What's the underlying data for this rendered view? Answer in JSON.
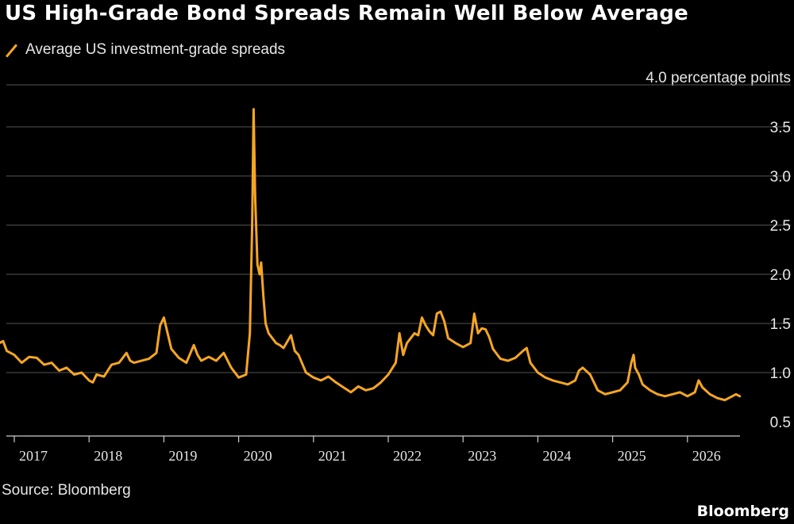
{
  "title": "US High-Grade Bond Spreads Remain Well Below Average",
  "legend_label": "Average US investment-grade spreads",
  "unit_label": "4.0 percentage points",
  "source": "Source: Bloomberg",
  "brand": "Bloomberg",
  "colors": {
    "line": "#f5a623",
    "grid": "#555555",
    "axis": "#cccccc",
    "background": "#000000"
  },
  "chart_data": {
    "type": "line",
    "title": "US High-Grade Bond Spreads Remain Well Below Average",
    "xlabel": "",
    "ylabel": "",
    "ylim": [
      0.35,
      4.0
    ],
    "xlim": [
      2016.7,
      2026.75
    ],
    "y_ticks": [
      0.5,
      1.0,
      1.5,
      2.0,
      2.5,
      3.0,
      3.5
    ],
    "y_tick_labels": [
      "0.5",
      "1.0",
      "1.5",
      "2.0",
      "2.5",
      "3.0",
      "3.5"
    ],
    "x_ticks": [
      2017,
      2018,
      2019,
      2020,
      2021,
      2022,
      2023,
      2024,
      2025,
      2026
    ],
    "x_tick_labels": [
      "2017",
      "2018",
      "2019",
      "2020",
      "2021",
      "2022",
      "2023",
      "2024",
      "2025",
      "2026"
    ],
    "grid": true,
    "legend": "top-left",
    "series": [
      {
        "name": "Average US investment-grade spreads",
        "x": [
          2016.7,
          2016.75,
          2016.8,
          2016.85,
          2016.9,
          2017.0,
          2017.1,
          2017.2,
          2017.3,
          2017.4,
          2017.5,
          2017.6,
          2017.7,
          2017.8,
          2017.9,
          2018.0,
          2018.05,
          2018.1,
          2018.2,
          2018.3,
          2018.4,
          2018.5,
          2018.55,
          2018.6,
          2018.7,
          2018.8,
          2018.9,
          2018.95,
          2019.0,
          2019.05,
          2019.1,
          2019.2,
          2019.3,
          2019.4,
          2019.45,
          2019.5,
          2019.6,
          2019.7,
          2019.8,
          2019.9,
          2020.0,
          2020.1,
          2020.15,
          2020.18,
          2020.2,
          2020.22,
          2020.25,
          2020.28,
          2020.3,
          2020.33,
          2020.36,
          2020.4,
          2020.45,
          2020.5,
          2020.55,
          2020.6,
          2020.7,
          2020.75,
          2020.8,
          2020.9,
          2021.0,
          2021.1,
          2021.2,
          2021.3,
          2021.4,
          2021.5,
          2021.6,
          2021.7,
          2021.8,
          2021.9,
          2022.0,
          2022.1,
          2022.15,
          2022.2,
          2022.25,
          2022.3,
          2022.35,
          2022.4,
          2022.45,
          2022.5,
          2022.55,
          2022.6,
          2022.65,
          2022.7,
          2022.75,
          2022.8,
          2022.9,
          2023.0,
          2023.1,
          2023.15,
          2023.2,
          2023.25,
          2023.3,
          2023.35,
          2023.4,
          2023.5,
          2023.6,
          2023.7,
          2023.8,
          2023.85,
          2023.9,
          2024.0,
          2024.1,
          2024.2,
          2024.3,
          2024.4,
          2024.5,
          2024.55,
          2024.6,
          2024.7,
          2024.8,
          2024.9,
          2025.0,
          2025.1,
          2025.2,
          2025.25,
          2025.28,
          2025.3,
          2025.35,
          2025.4,
          2025.5,
          2025.6,
          2025.7,
          2025.8,
          2025.9,
          2026.0,
          2026.1,
          2026.15,
          2026.2,
          2026.3,
          2026.4,
          2026.5,
          2026.6,
          2026.65,
          2026.7
        ],
        "values": [
          1.32,
          1.38,
          1.3,
          1.32,
          1.22,
          1.18,
          1.1,
          1.16,
          1.15,
          1.08,
          1.1,
          1.02,
          1.05,
          0.98,
          1.0,
          0.92,
          0.9,
          0.98,
          0.96,
          1.08,
          1.1,
          1.2,
          1.12,
          1.1,
          1.12,
          1.14,
          1.2,
          1.48,
          1.56,
          1.4,
          1.24,
          1.15,
          1.1,
          1.28,
          1.18,
          1.12,
          1.16,
          1.12,
          1.2,
          1.05,
          0.95,
          0.98,
          1.4,
          2.5,
          3.68,
          2.8,
          2.1,
          2.0,
          2.12,
          1.78,
          1.5,
          1.4,
          1.35,
          1.3,
          1.28,
          1.25,
          1.38,
          1.22,
          1.18,
          1.0,
          0.95,
          0.92,
          0.96,
          0.9,
          0.85,
          0.8,
          0.86,
          0.82,
          0.84,
          0.9,
          0.98,
          1.1,
          1.4,
          1.18,
          1.3,
          1.35,
          1.4,
          1.38,
          1.56,
          1.48,
          1.42,
          1.38,
          1.6,
          1.62,
          1.52,
          1.35,
          1.3,
          1.26,
          1.3,
          1.6,
          1.4,
          1.45,
          1.44,
          1.36,
          1.24,
          1.14,
          1.12,
          1.15,
          1.22,
          1.25,
          1.1,
          1.0,
          0.95,
          0.92,
          0.9,
          0.88,
          0.92,
          1.02,
          1.05,
          0.98,
          0.82,
          0.78,
          0.8,
          0.82,
          0.9,
          1.1,
          1.18,
          1.05,
          0.98,
          0.88,
          0.82,
          0.78,
          0.76,
          0.78,
          0.8,
          0.76,
          0.8,
          0.92,
          0.85,
          0.78,
          0.74,
          0.72,
          0.76,
          0.78,
          0.76
        ]
      }
    ]
  }
}
